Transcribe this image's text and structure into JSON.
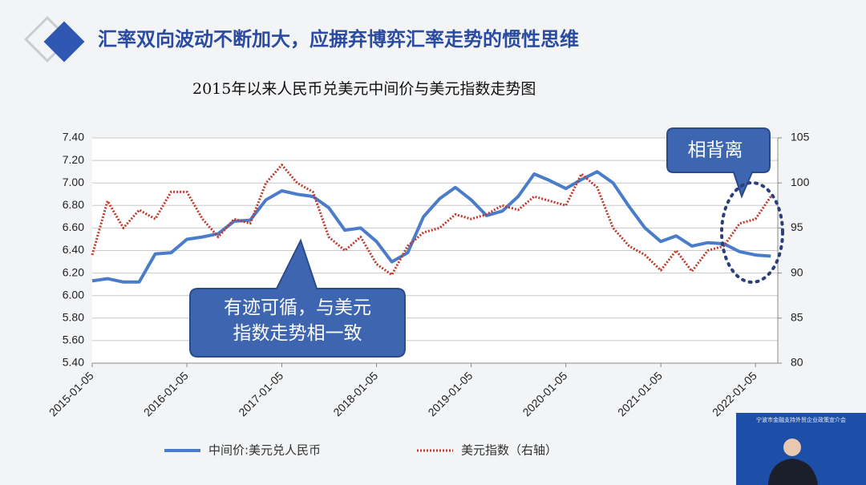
{
  "slide_title": "汇率双向波动不断加大，应摒弃博弈汇率走势的惯性思维",
  "video_caption": "宁波市金融支持外贸企业政策宣介会",
  "chart_data": {
    "type": "line",
    "title": "2015年以来人民币兑美元中间价与美元指数走势图",
    "annotations": [
      "有迹可循，与美元指数走势相一致",
      "相背离"
    ],
    "x": [
      "2015-01-05",
      "2015-03-05",
      "2015-05-05",
      "2015-07-05",
      "2015-09-05",
      "2015-11-05",
      "2016-01-05",
      "2016-03-05",
      "2016-05-05",
      "2016-07-05",
      "2016-09-05",
      "2016-11-05",
      "2017-01-05",
      "2017-03-05",
      "2017-05-05",
      "2017-07-05",
      "2017-09-05",
      "2017-11-05",
      "2018-01-05",
      "2018-03-05",
      "2018-05-05",
      "2018-07-05",
      "2018-09-05",
      "2018-11-05",
      "2019-01-05",
      "2019-03-05",
      "2019-05-05",
      "2019-07-05",
      "2019-09-05",
      "2019-11-05",
      "2020-01-05",
      "2020-03-05",
      "2020-05-05",
      "2020-07-05",
      "2020-09-05",
      "2020-11-05",
      "2021-01-05",
      "2021-03-05",
      "2021-05-05",
      "2021-07-05",
      "2021-09-05",
      "2021-11-05",
      "2022-01-05",
      "2022-03-05"
    ],
    "series": [
      {
        "name": "中间价:美元兑人民币",
        "color": "#4a7cc9",
        "axis": "y",
        "values": [
          6.13,
          6.15,
          6.12,
          6.12,
          6.37,
          6.38,
          6.5,
          6.52,
          6.55,
          6.66,
          6.67,
          6.85,
          6.93,
          6.9,
          6.88,
          6.78,
          6.58,
          6.6,
          6.48,
          6.3,
          6.38,
          6.7,
          6.86,
          6.96,
          6.85,
          6.71,
          6.75,
          6.88,
          7.08,
          7.02,
          6.95,
          7.03,
          7.1,
          7.0,
          6.79,
          6.6,
          6.48,
          6.53,
          6.44,
          6.47,
          6.46,
          6.39,
          6.36,
          6.35
        ]
      },
      {
        "name": "美元指数（右轴）",
        "color": "#c0392b",
        "axis": "y2",
        "values": [
          92,
          98,
          95,
          97,
          96,
          99,
          99,
          96,
          94,
          96,
          95.5,
          100,
          102,
          100,
          99,
          94,
          92.5,
          94,
          91,
          89.8,
          93,
          94.5,
          95,
          96.5,
          96,
          96.5,
          97.5,
          97,
          98.5,
          98,
          97.5,
          101,
          99.5,
          95,
          93,
          92,
          90.3,
          92.5,
          90.2,
          92.5,
          93,
          95.5,
          96,
          98.5
        ]
      }
    ],
    "xlim": [
      "2015-01-05",
      "2022-04-01"
    ],
    "xticks": [
      "2015-01-05",
      "2016-01-05",
      "2017-01-05",
      "2018-01-05",
      "2019-01-05",
      "2020-01-05",
      "2021-01-05",
      "2022-01-05"
    ],
    "ylim": [
      5.4,
      7.4
    ],
    "yticks": [
      {
        "value": 5.4,
        "label": "5.40"
      },
      {
        "value": 5.6,
        "label": "5.60"
      },
      {
        "value": 5.8,
        "label": "5.80"
      },
      {
        "value": 6.0,
        "label": "6.00"
      },
      {
        "value": 6.2,
        "label": "6.20"
      },
      {
        "value": 6.4,
        "label": "6.40"
      },
      {
        "value": 6.6,
        "label": "6.60"
      },
      {
        "value": 6.8,
        "label": "6.80"
      },
      {
        "value": 7.0,
        "label": "7.00"
      },
      {
        "value": 7.2,
        "label": "7.20"
      },
      {
        "value": 7.4,
        "label": "7.40"
      }
    ],
    "y2lim": [
      80,
      105
    ],
    "y2ticks": [
      80,
      85,
      90,
      95,
      100,
      105
    ],
    "grid": true
  }
}
